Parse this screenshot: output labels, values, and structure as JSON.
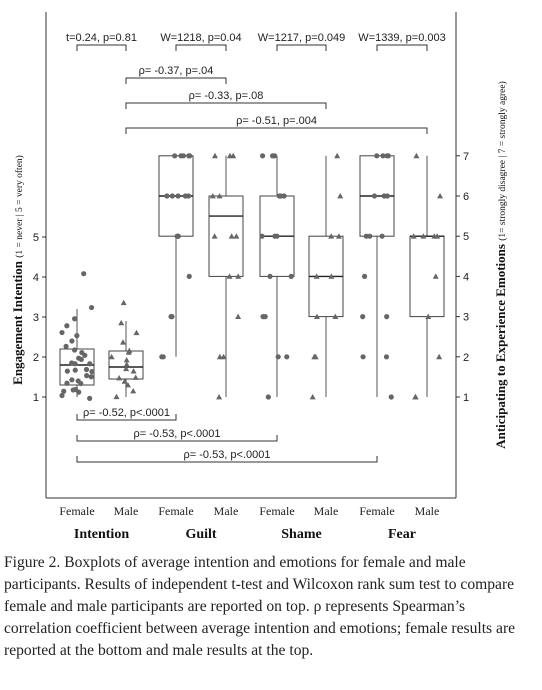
{
  "chart_data": {
    "type": "box",
    "left_axis": {
      "label_main": "Engagement Intention",
      "label_sub": "(1 = never | 5 = very often)",
      "ticks": [
        "1",
        "2",
        "3",
        "4",
        "5"
      ]
    },
    "right_axis": {
      "label_main": "Anticipating to Experience Emotions",
      "label_sub": "(1= strongly disagree | 7 = strongly agree)",
      "ticks": [
        "1",
        "2",
        "3",
        "4",
        "5",
        "6",
        "7"
      ]
    },
    "x_categories": [
      "Female",
      "Male",
      "Female",
      "Male",
      "Female",
      "Male",
      "Female",
      "Male"
    ],
    "groups": [
      {
        "label": "Intention",
        "categories": [
          0,
          1
        ]
      },
      {
        "label": "Guilt",
        "categories": [
          2,
          3
        ]
      },
      {
        "label": "Shame",
        "categories": [
          4,
          5
        ]
      },
      {
        "label": "Fear",
        "categories": [
          6,
          7
        ]
      }
    ],
    "boxes": [
      {
        "category": 0,
        "axis": "left",
        "q1": 1.3,
        "median": 1.8,
        "q3": 2.2,
        "whisker_low": 1.0,
        "whisker_high": 3.2,
        "points": [
          1.0,
          1.0,
          1.1,
          1.1,
          1.2,
          1.2,
          1.3,
          1.3,
          1.4,
          1.4,
          1.5,
          1.5,
          1.6,
          1.6,
          1.7,
          1.7,
          1.8,
          1.8,
          1.9,
          1.9,
          2.0,
          2.0,
          2.1,
          2.2,
          2.3,
          2.4,
          2.5,
          2.6,
          2.8,
          3.0,
          3.2,
          4.1
        ],
        "marker": "circle"
      },
      {
        "category": 1,
        "axis": "left",
        "q1": 1.45,
        "median": 1.75,
        "q3": 2.15,
        "whisker_low": 1.0,
        "whisker_high": 2.9,
        "points": [
          1.0,
          1.1,
          1.3,
          1.4,
          1.5,
          1.5,
          1.6,
          1.7,
          1.8,
          1.9,
          2.0,
          2.1,
          2.2,
          2.4,
          2.6,
          2.9,
          3.35
        ],
        "marker": "triangle"
      },
      {
        "category": 2,
        "axis": "right",
        "q1": 5,
        "median": 6,
        "q3": 7,
        "whisker_low": 2,
        "whisker_high": 7,
        "points": [
          2,
          2,
          3,
          3,
          4,
          5,
          5,
          5,
          5,
          6,
          6,
          6,
          6,
          6,
          7,
          7,
          7,
          7,
          7
        ],
        "marker": "circle"
      },
      {
        "category": 3,
        "axis": "right",
        "q1": 4,
        "median": 5.5,
        "q3": 6,
        "whisker_low": 1,
        "whisker_high": 7,
        "points": [
          1,
          2,
          2,
          3,
          4,
          4,
          5,
          5,
          5,
          6,
          6,
          7,
          7,
          7
        ],
        "marker": "triangle"
      },
      {
        "category": 4,
        "axis": "right",
        "q1": 4,
        "median": 5,
        "q3": 6,
        "whisker_low": 1,
        "whisker_high": 7,
        "points": [
          1,
          2,
          2,
          3,
          3,
          4,
          4,
          5,
          5,
          5,
          6,
          6,
          6,
          7,
          7,
          7
        ],
        "marker": "circle"
      },
      {
        "category": 5,
        "axis": "right",
        "q1": 3,
        "median": 4,
        "q3": 5,
        "whisker_low": 1,
        "whisker_high": 7,
        "points": [
          1,
          2,
          2,
          3,
          3,
          4,
          4,
          5,
          5,
          6,
          7
        ],
        "marker": "triangle"
      },
      {
        "category": 6,
        "axis": "right",
        "q1": 5,
        "median": 6,
        "q3": 7,
        "whisker_low": 1,
        "whisker_high": 7,
        "points": [
          1,
          2,
          2,
          3,
          3,
          4,
          5,
          5,
          5,
          6,
          6,
          6,
          7,
          7,
          7,
          7
        ],
        "marker": "circle"
      },
      {
        "category": 7,
        "axis": "right",
        "q1": 3,
        "median": 5,
        "q3": 5,
        "whisker_low": 1,
        "whisker_high": 7,
        "points": [
          1,
          1,
          2,
          3,
          4,
          5,
          5,
          5,
          5,
          6,
          7
        ],
        "marker": "triangle"
      }
    ],
    "top_annotations": [
      {
        "text": "t=0.24, p=0.81",
        "from": 0,
        "to": 1
      },
      {
        "text": "W=1218, p=0.04",
        "from": 2,
        "to": 3
      },
      {
        "text": "W=1217, p=0.049",
        "from": 4,
        "to": 5
      },
      {
        "text": "W=1339, p=0.003",
        "from": 6,
        "to": 7
      },
      {
        "text": "ρ= -0.37, p=.04",
        "from": 1,
        "to": 3
      },
      {
        "text": "ρ= -0.33, p=.08",
        "from": 1,
        "to": 5
      },
      {
        "text": "ρ= -0.51, p=.004",
        "from": 1,
        "to": 7
      }
    ],
    "bottom_annotations": [
      {
        "text": "ρ= -0.52, p<.0001",
        "from": 0,
        "to": 2
      },
      {
        "text": "ρ= -0.53, p<.0001",
        "from": 0,
        "to": 4
      },
      {
        "text": "ρ= -0.53, p<.0001",
        "from": 0,
        "to": 6
      }
    ]
  },
  "caption": "Figure 2. Boxplots of average intention and emotions for female and male participants. Results of independent t-test and Wilcoxon rank sum test to compare female and male participants are reported on top. ρ represents Spearman’s correlation coefficient between average intention and emotions; female results are reported at the bottom and male results at the top."
}
